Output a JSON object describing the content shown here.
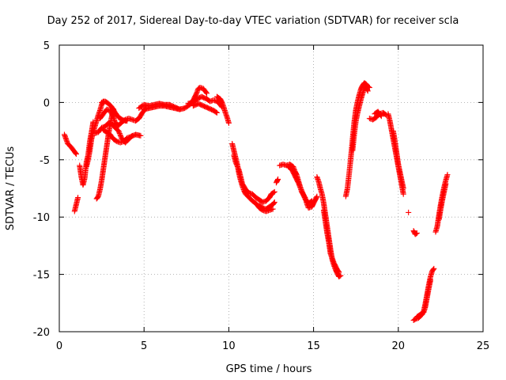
{
  "chart_data": {
    "type": "scatter",
    "title": "Day 252 of 2017, Sidereal Day-to-day VTEC variation (SDTVAR) for receiver scla",
    "xlabel": "GPS time / hours",
    "ylabel": "SDTVAR / TECUs",
    "xlim": [
      0,
      25
    ],
    "ylim": [
      -20,
      5
    ],
    "xticks": [
      "0",
      "5",
      "10",
      "15",
      "20",
      "25"
    ],
    "yticks": [
      "5",
      "0",
      "-5",
      "-10",
      "-15",
      "-20"
    ],
    "grid": true,
    "marker": "plus",
    "color": "#ff0000",
    "tracks": [
      [
        [
          0.3,
          -2.8
        ],
        [
          0.5,
          -3.6
        ],
        [
          0.7,
          -3.9
        ],
        [
          0.9,
          -4.3
        ],
        [
          1.0,
          -4.5
        ]
      ],
      [
        [
          0.9,
          -9.5
        ],
        [
          1.0,
          -8.9
        ],
        [
          1.1,
          -8.3
        ]
      ],
      [
        [
          1.2,
          -5.5
        ],
        [
          1.3,
          -6.5
        ],
        [
          1.4,
          -7.2
        ],
        [
          1.5,
          -6.6
        ],
        [
          1.6,
          -5.2
        ],
        [
          1.7,
          -4.6
        ],
        [
          1.8,
          -3.4
        ],
        [
          1.9,
          -2.6
        ],
        [
          2.0,
          -1.7
        ]
      ],
      [
        [
          1.6,
          -5.6
        ],
        [
          1.7,
          -5.0
        ],
        [
          1.8,
          -4.2
        ],
        [
          1.9,
          -3.2
        ],
        [
          2.0,
          -2.6
        ],
        [
          2.1,
          -2.1
        ],
        [
          2.2,
          -1.6
        ],
        [
          2.3,
          -1.1
        ],
        [
          2.4,
          -0.7
        ],
        [
          2.5,
          -0.2
        ],
        [
          2.6,
          0.1
        ]
      ],
      [
        [
          2.1,
          -2.7
        ],
        [
          2.3,
          -2.6
        ],
        [
          2.5,
          -2.2
        ],
        [
          2.7,
          -2.1
        ],
        [
          2.9,
          -1.8
        ],
        [
          3.1,
          -1.9
        ],
        [
          3.3,
          -2.2
        ],
        [
          3.5,
          -2.5
        ],
        [
          3.7,
          -3.2
        ],
        [
          3.9,
          -3.5
        ],
        [
          4.1,
          -3.2
        ],
        [
          4.3,
          -2.9
        ]
      ],
      [
        [
          2.2,
          -8.4
        ],
        [
          2.3,
          -8.2
        ],
        [
          2.4,
          -7.6
        ],
        [
          2.5,
          -6.8
        ],
        [
          2.6,
          -5.8
        ],
        [
          2.7,
          -4.8
        ],
        [
          2.8,
          -3.8
        ],
        [
          2.9,
          -2.8
        ],
        [
          3.0,
          -1.9
        ],
        [
          3.1,
          -1.2
        ],
        [
          3.2,
          -0.6
        ]
      ],
      [
        [
          2.6,
          -2.4
        ],
        [
          2.8,
          -2.6
        ],
        [
          3.0,
          -2.8
        ],
        [
          3.2,
          -3.2
        ],
        [
          3.4,
          -3.4
        ],
        [
          3.6,
          -3.5
        ],
        [
          3.8,
          -3.4
        ],
        [
          4.0,
          -3.1
        ],
        [
          4.2,
          -3.0
        ],
        [
          4.5,
          -2.8
        ],
        [
          4.8,
          -2.9
        ]
      ],
      [
        [
          2.5,
          0.0
        ],
        [
          2.7,
          0.1
        ],
        [
          2.9,
          -0.1
        ],
        [
          3.1,
          -0.4
        ],
        [
          3.3,
          -0.9
        ],
        [
          3.5,
          -1.3
        ],
        [
          3.7,
          -1.5
        ],
        [
          3.9,
          -1.6
        ],
        [
          4.0,
          -1.6
        ]
      ],
      [
        [
          2.4,
          -1.4
        ],
        [
          2.6,
          -1.0
        ],
        [
          2.8,
          -0.6
        ],
        [
          3.0,
          -0.7
        ],
        [
          3.2,
          -1.3
        ],
        [
          3.3,
          -1.8
        ],
        [
          3.5,
          -2.0
        ],
        [
          3.7,
          -1.7
        ],
        [
          3.9,
          -1.5
        ],
        [
          4.1,
          -1.4
        ],
        [
          4.3,
          -1.5
        ],
        [
          4.5,
          -1.6
        ],
        [
          4.7,
          -1.4
        ],
        [
          4.9,
          -0.9
        ],
        [
          5.1,
          -0.5
        ]
      ],
      [
        [
          4.7,
          -0.5
        ],
        [
          5.0,
          -0.2
        ],
        [
          5.3,
          -0.3
        ],
        [
          5.6,
          -0.2
        ],
        [
          5.9,
          -0.1
        ],
        [
          6.2,
          -0.2
        ],
        [
          6.5,
          -0.2
        ],
        [
          6.8,
          -0.4
        ],
        [
          7.1,
          -0.6
        ],
        [
          7.4,
          -0.5
        ],
        [
          7.7,
          -0.2
        ],
        [
          7.9,
          0.2
        ],
        [
          8.1,
          0.8
        ],
        [
          8.2,
          1.2
        ],
        [
          8.3,
          1.3
        ],
        [
          8.5,
          1.2
        ],
        [
          8.7,
          0.8
        ]
      ],
      [
        [
          5.0,
          -0.6
        ],
        [
          5.3,
          -0.5
        ],
        [
          5.6,
          -0.4
        ],
        [
          5.9,
          -0.3
        ],
        [
          6.2,
          -0.3
        ],
        [
          6.5,
          -0.4
        ],
        [
          6.8,
          -0.5
        ],
        [
          7.1,
          -0.6
        ]
      ],
      [
        [
          7.6,
          -0.1
        ],
        [
          7.9,
          0.0
        ],
        [
          8.1,
          0.3
        ],
        [
          8.4,
          0.5
        ],
        [
          8.7,
          0.3
        ],
        [
          8.9,
          0.1
        ],
        [
          9.1,
          0.2
        ],
        [
          9.3,
          0.1
        ],
        [
          9.5,
          -0.2
        ],
        [
          9.6,
          -0.4
        ]
      ],
      [
        [
          7.9,
          -0.3
        ],
        [
          8.2,
          -0.1
        ],
        [
          8.5,
          -0.3
        ],
        [
          8.8,
          -0.5
        ],
        [
          9.1,
          -0.7
        ],
        [
          9.3,
          -0.9
        ]
      ],
      [
        [
          9.3,
          0.5
        ],
        [
          9.5,
          0.3
        ],
        [
          9.6,
          0.0
        ],
        [
          9.7,
          -0.4
        ],
        [
          9.8,
          -0.9
        ],
        [
          9.9,
          -1.3
        ],
        [
          10.0,
          -1.8
        ]
      ],
      [
        [
          10.2,
          -3.6
        ],
        [
          10.3,
          -4.2
        ],
        [
          10.4,
          -4.8
        ],
        [
          10.5,
          -5.4
        ],
        [
          10.6,
          -6.2
        ],
        [
          10.7,
          -6.8
        ],
        [
          10.8,
          -7.3
        ],
        [
          10.9,
          -7.7
        ],
        [
          11.0,
          -8.0
        ],
        [
          11.2,
          -8.3
        ],
        [
          11.4,
          -8.6
        ],
        [
          11.6,
          -8.8
        ],
        [
          11.8,
          -9.2
        ],
        [
          12.0,
          -9.4
        ],
        [
          12.2,
          -9.5
        ],
        [
          12.4,
          -9.4
        ],
        [
          12.6,
          -9.3
        ]
      ],
      [
        [
          10.3,
          -4.6
        ],
        [
          10.4,
          -5.2
        ],
        [
          10.6,
          -5.9
        ],
        [
          10.7,
          -6.5
        ],
        [
          10.8,
          -7.1
        ],
        [
          11.0,
          -7.6
        ],
        [
          11.2,
          -7.9
        ],
        [
          11.4,
          -8.0
        ],
        [
          11.6,
          -8.3
        ],
        [
          11.8,
          -8.5
        ],
        [
          12.0,
          -8.7
        ],
        [
          12.2,
          -8.6
        ],
        [
          12.4,
          -8.3
        ],
        [
          12.5,
          -8.0
        ],
        [
          12.7,
          -7.8
        ]
      ],
      [
        [
          11.8,
          -9.0
        ],
        [
          12.0,
          -9.2
        ],
        [
          12.2,
          -9.3
        ],
        [
          12.4,
          -9.1
        ],
        [
          12.6,
          -8.9
        ],
        [
          12.7,
          -8.7
        ]
      ],
      [
        [
          12.8,
          -7.0
        ],
        [
          12.9,
          -6.7
        ]
      ],
      [
        [
          13.0,
          -5.5
        ],
        [
          13.2,
          -5.4
        ],
        [
          13.4,
          -5.5
        ],
        [
          13.6,
          -5.4
        ],
        [
          13.8,
          -5.6
        ],
        [
          13.9,
          -6.0
        ],
        [
          14.0,
          -6.3
        ],
        [
          14.1,
          -6.8
        ],
        [
          14.2,
          -7.3
        ],
        [
          14.3,
          -7.8
        ],
        [
          14.5,
          -8.3
        ],
        [
          14.6,
          -8.8
        ],
        [
          14.7,
          -9.2
        ],
        [
          14.9,
          -9.1
        ],
        [
          15.0,
          -8.8
        ],
        [
          15.1,
          -8.5
        ],
        [
          15.2,
          -8.2
        ]
      ],
      [
        [
          13.5,
          -5.6
        ],
        [
          13.7,
          -5.8
        ],
        [
          13.9,
          -6.4
        ],
        [
          14.1,
          -7.0
        ],
        [
          14.3,
          -7.7
        ],
        [
          14.5,
          -8.4
        ],
        [
          14.7,
          -8.8
        ],
        [
          14.9,
          -8.6
        ]
      ],
      [
        [
          15.2,
          -6.5
        ],
        [
          15.3,
          -6.9
        ],
        [
          15.4,
          -7.5
        ],
        [
          15.5,
          -8.0
        ],
        [
          15.6,
          -8.8
        ],
        [
          15.7,
          -9.8
        ],
        [
          15.8,
          -10.8
        ],
        [
          15.9,
          -11.8
        ],
        [
          16.0,
          -12.8
        ],
        [
          16.1,
          -13.7
        ],
        [
          16.2,
          -14.2
        ],
        [
          16.3,
          -14.6
        ],
        [
          16.4,
          -14.9
        ],
        [
          16.5,
          -15.2
        ],
        [
          16.6,
          -15.1
        ]
      ],
      [
        [
          15.6,
          -9.4
        ],
        [
          15.7,
          -10.4
        ],
        [
          15.8,
          -11.4
        ],
        [
          15.9,
          -12.2
        ],
        [
          16.0,
          -13.2
        ],
        [
          16.2,
          -14.0
        ],
        [
          16.4,
          -14.6
        ],
        [
          16.5,
          -14.8
        ]
      ],
      [
        [
          16.9,
          -8.2
        ],
        [
          17.0,
          -7.5
        ],
        [
          17.1,
          -6.2
        ],
        [
          17.2,
          -4.8
        ],
        [
          17.3,
          -3.2
        ],
        [
          17.4,
          -1.7
        ],
        [
          17.5,
          -0.6
        ],
        [
          17.6,
          0.1
        ],
        [
          17.7,
          0.7
        ],
        [
          17.8,
          1.2
        ],
        [
          17.9,
          1.5
        ],
        [
          18.0,
          1.7
        ],
        [
          18.1,
          1.6
        ],
        [
          18.2,
          1.4
        ],
        [
          18.3,
          1.3
        ]
      ],
      [
        [
          17.3,
          -4.2
        ],
        [
          17.4,
          -2.8
        ],
        [
          17.5,
          -1.6
        ],
        [
          17.6,
          -0.9
        ],
        [
          17.7,
          -0.3
        ],
        [
          17.8,
          0.3
        ],
        [
          17.9,
          0.8
        ],
        [
          18.0,
          1.2
        ],
        [
          18.1,
          1.3
        ],
        [
          18.2,
          1.0
        ]
      ],
      [
        [
          18.3,
          -1.4
        ],
        [
          18.5,
          -1.5
        ],
        [
          18.7,
          -1.3
        ],
        [
          18.9,
          -1.0
        ],
        [
          19.1,
          -0.9
        ],
        [
          19.3,
          -1.1
        ]
      ],
      [
        [
          18.6,
          -1.0
        ],
        [
          18.8,
          -0.8
        ],
        [
          19.0,
          -1.2
        ]
      ],
      [
        [
          19.4,
          -1.0
        ],
        [
          19.5,
          -1.6
        ],
        [
          19.6,
          -2.4
        ],
        [
          19.7,
          -3.2
        ],
        [
          19.8,
          -4.0
        ],
        [
          19.9,
          -4.8
        ],
        [
          20.0,
          -5.6
        ],
        [
          20.1,
          -6.4
        ],
        [
          20.2,
          -7.2
        ],
        [
          20.3,
          -8.0
        ]
      ],
      [
        [
          19.7,
          -2.5
        ],
        [
          19.8,
          -3.4
        ],
        [
          19.9,
          -4.4
        ],
        [
          20.0,
          -5.4
        ],
        [
          20.1,
          -6.1
        ],
        [
          20.2,
          -6.8
        ],
        [
          20.3,
          -7.5
        ]
      ],
      [
        [
          20.6,
          -9.6
        ]
      ],
      [
        [
          20.9,
          -11.2
        ],
        [
          21.0,
          -11.5
        ],
        [
          21.1,
          -11.4
        ]
      ],
      [
        [
          20.9,
          -19.0
        ],
        [
          21.0,
          -18.9
        ],
        [
          21.2,
          -18.8
        ],
        [
          21.4,
          -18.5
        ],
        [
          21.5,
          -18.2
        ],
        [
          21.6,
          -17.5
        ],
        [
          21.7,
          -16.7
        ],
        [
          21.8,
          -15.9
        ],
        [
          21.9,
          -15.2
        ],
        [
          22.0,
          -14.7
        ],
        [
          22.1,
          -14.5
        ]
      ],
      [
        [
          21.1,
          -18.7
        ],
        [
          21.3,
          -18.5
        ],
        [
          21.5,
          -18.3
        ],
        [
          21.6,
          -17.8
        ],
        [
          21.7,
          -17.0
        ],
        [
          21.8,
          -16.2
        ],
        [
          21.9,
          -15.5
        ]
      ],
      [
        [
          22.2,
          -11.3
        ],
        [
          22.3,
          -10.8
        ],
        [
          22.4,
          -9.8
        ],
        [
          22.5,
          -8.9
        ],
        [
          22.6,
          -8.1
        ],
        [
          22.7,
          -7.4
        ],
        [
          22.8,
          -6.8
        ],
        [
          22.9,
          -6.3
        ]
      ],
      [
        [
          22.4,
          -10.2
        ],
        [
          22.5,
          -9.3
        ],
        [
          22.6,
          -8.5
        ],
        [
          22.7,
          -7.8
        ],
        [
          22.8,
          -7.1
        ]
      ]
    ]
  }
}
